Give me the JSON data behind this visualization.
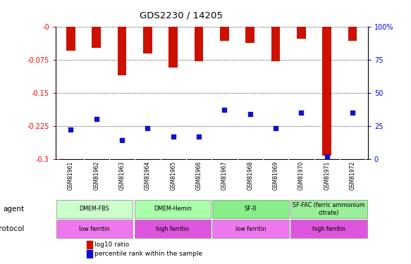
{
  "title": "GDS2230 / 14205",
  "samples": [
    "GSM81961",
    "GSM81962",
    "GSM81963",
    "GSM81964",
    "GSM81965",
    "GSM81966",
    "GSM81967",
    "GSM81968",
    "GSM81969",
    "GSM81970",
    "GSM81971",
    "GSM81972"
  ],
  "log10_ratio": [
    -0.055,
    -0.048,
    -0.11,
    -0.062,
    -0.093,
    -0.079,
    -0.033,
    -0.038,
    -0.079,
    -0.028,
    -0.293,
    -0.032
  ],
  "percentile_rank": [
    22,
    30,
    14,
    23,
    17,
    17,
    37,
    34,
    23,
    35,
    2,
    35
  ],
  "ylim_left": [
    -0.3,
    0.0
  ],
  "ylim_right": [
    0,
    100
  ],
  "yticks_left": [
    0,
    -0.075,
    -0.15,
    -0.225,
    -0.3
  ],
  "ytick_labels_left": [
    "-0",
    "-0.075",
    "-0.15",
    "-0.225",
    "-0.3"
  ],
  "yticks_right": [
    100,
    75,
    50,
    25,
    0
  ],
  "ytick_labels_right": [
    "100%",
    "75",
    "50",
    "25",
    "0"
  ],
  "bar_color": "#cc1100",
  "dot_color": "#1111cc",
  "agent_groups": [
    {
      "label": "DMEM-FBS",
      "start": 0,
      "end": 3,
      "color": "#ccffcc"
    },
    {
      "label": "DMEM-Hemin",
      "start": 3,
      "end": 6,
      "color": "#aaffaa"
    },
    {
      "label": "SF-0",
      "start": 6,
      "end": 9,
      "color": "#88ee88"
    },
    {
      "label": "SF-FAC (ferric ammonium\ncitrate)",
      "start": 9,
      "end": 12,
      "color": "#99ee99"
    }
  ],
  "growth_groups": [
    {
      "label": "low ferritin",
      "start": 0,
      "end": 3,
      "color": "#ee77ee"
    },
    {
      "label": "high ferritin",
      "start": 3,
      "end": 6,
      "color": "#dd55dd"
    },
    {
      "label": "low ferritin",
      "start": 6,
      "end": 9,
      "color": "#ee77ee"
    },
    {
      "label": "high ferritin",
      "start": 9,
      "end": 12,
      "color": "#dd55dd"
    }
  ],
  "bar_width": 0.35,
  "dot_size": 18
}
